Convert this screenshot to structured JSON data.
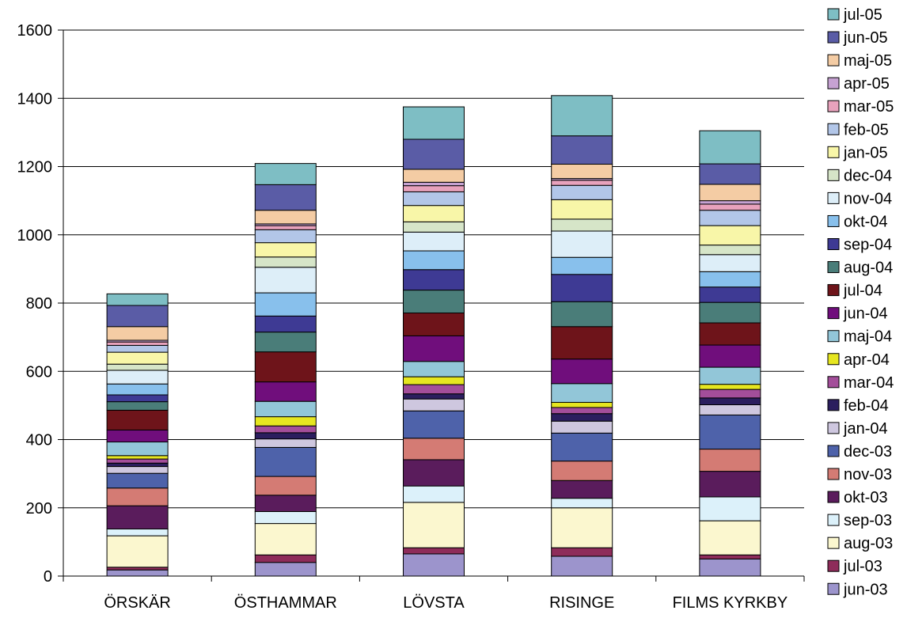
{
  "chart_data": {
    "type": "bar",
    "stacked": true,
    "categories": [
      "ÖRSKÄR",
      "ÖSTHAMMAR",
      "LÖVSTA",
      "RISINGE",
      "FILMS KYRKBY"
    ],
    "ylim": [
      0,
      1600
    ],
    "yticks": [
      0,
      200,
      400,
      600,
      800,
      1000,
      1200,
      1400,
      1600
    ],
    "ytick_labels": [
      "0",
      "200",
      "400",
      "600",
      "800",
      "1000",
      "1200",
      "1400",
      "1600"
    ],
    "grid": true,
    "legend_position": "right",
    "legend_order": "reversed",
    "series": [
      {
        "name": "jun-03",
        "color": "#9c94cc",
        "values": [
          18,
          40,
          65,
          58,
          50
        ]
      },
      {
        "name": "jul-03",
        "color": "#8e2c5a",
        "values": [
          8,
          22,
          18,
          25,
          12
        ]
      },
      {
        "name": "aug-03",
        "color": "#fbf7cf",
        "values": [
          92,
          92,
          133,
          117,
          100
        ]
      },
      {
        "name": "sep-03",
        "color": "#dcf1fa",
        "values": [
          20,
          35,
          48,
          28,
          70
        ]
      },
      {
        "name": "okt-03",
        "color": "#5a1c5c",
        "values": [
          68,
          48,
          77,
          52,
          75
        ]
      },
      {
        "name": "nov-03",
        "color": "#d47b74",
        "values": [
          52,
          55,
          63,
          57,
          65
        ]
      },
      {
        "name": "dec-03",
        "color": "#4e62aa",
        "values": [
          43,
          85,
          80,
          82,
          100
        ]
      },
      {
        "name": "jan-04",
        "color": "#cec7df",
        "values": [
          20,
          25,
          35,
          35,
          30
        ]
      },
      {
        "name": "feb-04",
        "color": "#2b1e5e",
        "values": [
          10,
          18,
          15,
          22,
          20
        ]
      },
      {
        "name": "mar-04",
        "color": "#a34e9a",
        "values": [
          12,
          20,
          27,
          18,
          25
        ]
      },
      {
        "name": "apr-04",
        "color": "#e6e620",
        "values": [
          10,
          27,
          23,
          15,
          15
        ]
      },
      {
        "name": "maj-04",
        "color": "#92c6d8",
        "values": [
          40,
          45,
          45,
          55,
          50
        ]
      },
      {
        "name": "jun-04",
        "color": "#700e7c",
        "values": [
          35,
          57,
          75,
          72,
          65
        ]
      },
      {
        "name": "jul-04",
        "color": "#6e141a",
        "values": [
          58,
          88,
          67,
          95,
          65
        ]
      },
      {
        "name": "aug-04",
        "color": "#4a7d79",
        "values": [
          25,
          58,
          67,
          73,
          60
        ]
      },
      {
        "name": "sep-04",
        "color": "#3e3a94",
        "values": [
          20,
          47,
          60,
          80,
          45
        ]
      },
      {
        "name": "okt-04",
        "color": "#88c0ec",
        "values": [
          32,
          68,
          55,
          50,
          45
        ]
      },
      {
        "name": "nov-04",
        "color": "#ddeef8",
        "values": [
          40,
          75,
          55,
          77,
          50
        ]
      },
      {
        "name": "dec-04",
        "color": "#d6e5c8",
        "values": [
          18,
          30,
          30,
          35,
          28
        ]
      },
      {
        "name": "jan-05",
        "color": "#f8f6a8",
        "values": [
          35,
          42,
          48,
          57,
          57
        ]
      },
      {
        "name": "feb-05",
        "color": "#b2c6e8",
        "values": [
          20,
          38,
          40,
          42,
          45
        ]
      },
      {
        "name": "mar-05",
        "color": "#e8a2bc",
        "values": [
          10,
          12,
          18,
          15,
          18
        ]
      },
      {
        "name": "apr-05",
        "color": "#c6a2d2",
        "values": [
          5,
          5,
          10,
          5,
          10
        ]
      },
      {
        "name": "maj-05",
        "color": "#f4cca4",
        "values": [
          40,
          40,
          38,
          42,
          48
        ]
      },
      {
        "name": "jun-05",
        "color": "#5a5ca6",
        "values": [
          62,
          75,
          88,
          83,
          60
        ]
      },
      {
        "name": "jul-05",
        "color": "#7ebec4",
        "values": [
          34,
          62,
          95,
          118,
          97
        ]
      }
    ]
  }
}
